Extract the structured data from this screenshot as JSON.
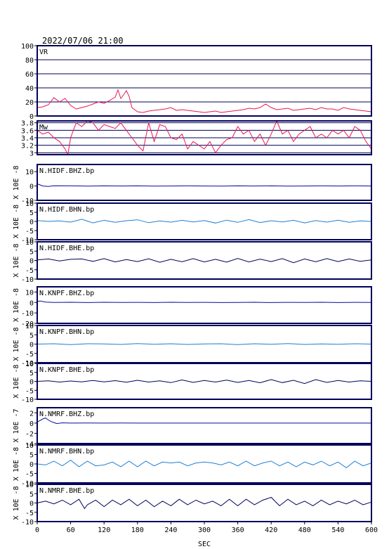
{
  "header": {
    "datetime": "2022/07/06 21:00"
  },
  "x_axis": {
    "label": "SEC",
    "range": [
      0,
      600
    ],
    "ticks": [
      0,
      60,
      120,
      180,
      240,
      300,
      360,
      420,
      480,
      540,
      600
    ]
  },
  "colors": {
    "vr_mw": "#e8174f",
    "bhz": "#0a0aa0",
    "bhn": "#1f7fd0",
    "bhe": "#00005a",
    "frame": "#00005a"
  },
  "chart_data": [
    {
      "type": "line",
      "name": "VR",
      "label": "VR",
      "ylim": [
        0,
        100
      ],
      "yticks": [
        0,
        20,
        40,
        60,
        80,
        100
      ],
      "grid": true,
      "x": [
        0,
        10,
        20,
        30,
        40,
        50,
        60,
        70,
        80,
        90,
        100,
        110,
        120,
        130,
        140,
        145,
        150,
        155,
        160,
        165,
        170,
        180,
        190,
        200,
        210,
        220,
        230,
        240,
        250,
        260,
        270,
        280,
        290,
        300,
        310,
        320,
        330,
        340,
        350,
        360,
        370,
        380,
        390,
        400,
        410,
        420,
        430,
        440,
        450,
        460,
        470,
        480,
        490,
        500,
        510,
        520,
        530,
        540,
        550,
        560,
        570,
        580,
        590,
        600
      ],
      "values": [
        12,
        13,
        16,
        26,
        20,
        25,
        15,
        10,
        12,
        14,
        17,
        20,
        18,
        22,
        27,
        37,
        25,
        30,
        36,
        28,
        12,
        6,
        5,
        7,
        8,
        9,
        10,
        12,
        8,
        9,
        8,
        7,
        6,
        5,
        6,
        7,
        5,
        6,
        7,
        8,
        9,
        11,
        10,
        12,
        17,
        12,
        9,
        10,
        11,
        8,
        9,
        10,
        11,
        9,
        12,
        10,
        10,
        8,
        12,
        10,
        9,
        8,
        7,
        6
      ]
    },
    {
      "type": "line",
      "name": "Mw",
      "label": "Mw",
      "ylim": [
        2.95,
        3.85
      ],
      "yticks": [
        3.0,
        3.2,
        3.4,
        3.6,
        3.8
      ],
      "grid": true,
      "x": [
        0,
        10,
        20,
        30,
        40,
        50,
        55,
        60,
        70,
        80,
        90,
        100,
        110,
        120,
        130,
        140,
        150,
        160,
        170,
        180,
        190,
        200,
        210,
        220,
        230,
        240,
        250,
        260,
        270,
        280,
        290,
        300,
        310,
        320,
        330,
        340,
        350,
        360,
        370,
        380,
        390,
        400,
        410,
        420,
        430,
        440,
        450,
        460,
        470,
        480,
        490,
        500,
        510,
        520,
        530,
        540,
        550,
        560,
        570,
        580,
        590,
        600
      ],
      "values": [
        3.6,
        3.5,
        3.55,
        3.4,
        3.3,
        3.1,
        2.95,
        3.4,
        3.8,
        3.7,
        3.85,
        3.8,
        3.6,
        3.75,
        3.7,
        3.65,
        3.8,
        3.6,
        3.4,
        3.2,
        3.05,
        3.8,
        3.3,
        3.75,
        3.7,
        3.4,
        3.35,
        3.5,
        3.1,
        3.3,
        3.2,
        3.1,
        3.3,
        3.0,
        3.2,
        3.35,
        3.4,
        3.7,
        3.5,
        3.6,
        3.3,
        3.5,
        3.2,
        3.5,
        3.85,
        3.5,
        3.6,
        3.3,
        3.5,
        3.6,
        3.7,
        3.4,
        3.5,
        3.4,
        3.6,
        3.5,
        3.6,
        3.4,
        3.7,
        3.6,
        3.3,
        3.1
      ]
    },
    {
      "type": "line",
      "name": "N.HIDF.BHZ.bp",
      "label": "N.HIDF.BHZ.bp",
      "ylabel": "X 10E -8",
      "ylim": [
        -10,
        15
      ],
      "yticks": [
        -10,
        0,
        10
      ],
      "grid": false,
      "color_key": "bhz",
      "x": [
        0,
        5,
        10,
        20,
        30,
        60,
        90,
        120,
        150,
        180,
        210,
        240,
        270,
        300,
        330,
        360,
        390,
        420,
        450,
        480,
        510,
        540,
        570,
        600
      ],
      "values": [
        1.5,
        0.8,
        0,
        -0.3,
        0.2,
        0.1,
        -0.1,
        0.1,
        0,
        0.1,
        -0.1,
        0,
        0.1,
        0,
        -0.1,
        0.1,
        0,
        0.1,
        -0.1,
        0,
        0.1,
        0,
        0.1,
        0
      ]
    },
    {
      "type": "line",
      "name": "N.HIDF.BHN.bp",
      "label": "N.HIDF.BHN.bp",
      "ylabel": "X 10E -8",
      "ylim": [
        -10,
        10
      ],
      "yticks": [
        -10,
        -5,
        0,
        5,
        10
      ],
      "grid": false,
      "color_key": "bhn",
      "x": [
        0,
        20,
        40,
        60,
        80,
        100,
        120,
        140,
        160,
        180,
        200,
        220,
        240,
        260,
        280,
        300,
        320,
        340,
        360,
        380,
        400,
        420,
        440,
        460,
        480,
        500,
        520,
        540,
        560,
        580,
        600
      ],
      "values": [
        0.5,
        0,
        0.3,
        -0.4,
        1.2,
        -0.8,
        0.6,
        -0.5,
        0.4,
        0.9,
        -0.7,
        0.3,
        -0.4,
        0.6,
        -0.3,
        0.5,
        -0.9,
        0.7,
        -0.5,
        1,
        -0.6,
        0.4,
        -0.3,
        0.6,
        -0.8,
        0.5,
        -0.4,
        0.7,
        -0.5,
        0.3,
        0
      ]
    },
    {
      "type": "line",
      "name": "N.HIDF.BHE.bp",
      "label": "N.HIDF.BHE.bp",
      "ylabel": "X 10E -8",
      "ylim": [
        -10,
        10
      ],
      "yticks": [
        -10,
        -5,
        0,
        5,
        10
      ],
      "grid": false,
      "color_key": "bhe",
      "x": [
        0,
        20,
        40,
        60,
        80,
        100,
        120,
        140,
        160,
        180,
        200,
        220,
        240,
        260,
        280,
        300,
        320,
        340,
        360,
        380,
        400,
        420,
        440,
        460,
        480,
        500,
        520,
        540,
        560,
        580,
        600
      ],
      "values": [
        0.3,
        0.8,
        -0.3,
        0.6,
        0.8,
        -0.5,
        1,
        -0.8,
        0.5,
        -0.6,
        0.9,
        -1,
        0.6,
        -0.7,
        1,
        -0.8,
        0.6,
        -0.9,
        1.1,
        -0.8,
        0.7,
        -0.6,
        1,
        -1.2,
        0.8,
        -0.7,
        1,
        -0.6,
        0.8,
        -0.5,
        0.3
      ]
    },
    {
      "type": "line",
      "name": "N.KNPF.BHZ.bp",
      "label": "N.KNPF.BHZ.bp",
      "ylabel": "X 10E -8",
      "ylim": [
        -20,
        15
      ],
      "yticks": [
        -20,
        -10,
        0,
        10
      ],
      "grid": false,
      "color_key": "bhz",
      "x": [
        0,
        5,
        15,
        30,
        60,
        90,
        120,
        150,
        180,
        210,
        240,
        270,
        300,
        330,
        360,
        390,
        420,
        450,
        480,
        510,
        540,
        570,
        600
      ],
      "values": [
        0.8,
        1.5,
        0.3,
        0,
        0.2,
        -0.1,
        0.2,
        0,
        0.1,
        -0.1,
        0.2,
        0,
        0.1,
        -0.1,
        0,
        0.2,
        -0.1,
        0.1,
        0,
        0.2,
        -0.1,
        0.1,
        0
      ]
    },
    {
      "type": "line",
      "name": "N.KNPF.BHN.bp",
      "label": "N.KNPF.BHN.bp",
      "ylabel": "X 10E -8",
      "ylim": [
        -10,
        10
      ],
      "yticks": [
        -10,
        -5,
        0,
        5,
        10
      ],
      "grid": false,
      "color_key": "bhn",
      "x": [
        0,
        30,
        60,
        90,
        120,
        150,
        180,
        210,
        240,
        270,
        300,
        330,
        360,
        390,
        420,
        450,
        480,
        510,
        540,
        570,
        600
      ],
      "values": [
        0,
        0.2,
        -0.3,
        0.2,
        0.1,
        -0.2,
        0.3,
        -0.1,
        0.2,
        -0.2,
        0.1,
        0.2,
        -0.3,
        0.2,
        -0.1,
        0.3,
        -0.2,
        0.1,
        -0.1,
        0.2,
        0
      ]
    },
    {
      "type": "line",
      "name": "N.KNPF.BHE.bp",
      "label": "N.KNPF.BHE.bp",
      "ylabel": "X 10E -8",
      "ylim": [
        -10,
        10
      ],
      "yticks": [
        -10,
        -5,
        0,
        5,
        10
      ],
      "grid": false,
      "color_key": "bhe",
      "x": [
        0,
        20,
        40,
        60,
        80,
        100,
        120,
        140,
        160,
        180,
        200,
        220,
        240,
        260,
        280,
        300,
        320,
        340,
        360,
        380,
        400,
        420,
        440,
        460,
        480,
        500,
        520,
        540,
        560,
        580,
        600
      ],
      "values": [
        0,
        0.3,
        -0.4,
        0.2,
        -0.3,
        0.5,
        -0.3,
        0.4,
        -0.5,
        0.6,
        -0.4,
        0.3,
        -0.7,
        0.8,
        -0.6,
        0.5,
        -0.4,
        0.7,
        -0.6,
        0.5,
        -0.8,
        1,
        -0.7,
        0.6,
        -1.2,
        1,
        -0.6,
        0.5,
        -0.4,
        0.3,
        0
      ]
    },
    {
      "type": "line",
      "name": "N.NMRF.BHZ.bp",
      "label": "N.NMRF.BHZ.bp",
      "ylabel": "X 10E -7",
      "ylim": [
        -4,
        3
      ],
      "yticks": [
        -4,
        -2,
        0,
        2
      ],
      "grid": false,
      "color_key": "bhz",
      "x": [
        0,
        5,
        10,
        15,
        20,
        25,
        30,
        35,
        45,
        60,
        90,
        120,
        150,
        180,
        240,
        300,
        360,
        420,
        480,
        540,
        600
      ],
      "values": [
        0.2,
        0.5,
        0.8,
        1.0,
        0.6,
        0.3,
        0.1,
        -0.1,
        0.05,
        0,
        0.02,
        0,
        0.02,
        0,
        0,
        0,
        0,
        0,
        0,
        0,
        0
      ]
    },
    {
      "type": "line",
      "name": "N.NMRF.BHN.bp",
      "label": "N.NMRF.BHN.bp",
      "ylabel": "X 10E -8",
      "ylim": [
        -10,
        10
      ],
      "yticks": [
        -10,
        -5,
        0,
        5,
        10
      ],
      "grid": false,
      "color_key": "bhn",
      "x": [
        0,
        15,
        30,
        45,
        60,
        75,
        90,
        105,
        120,
        135,
        150,
        165,
        180,
        195,
        210,
        225,
        240,
        255,
        270,
        285,
        300,
        315,
        330,
        345,
        360,
        375,
        390,
        405,
        420,
        435,
        450,
        465,
        480,
        495,
        510,
        525,
        540,
        555,
        570,
        585,
        600
      ],
      "values": [
        0,
        -0.5,
        1.5,
        -1,
        2,
        -1.5,
        1.5,
        -1,
        -0.5,
        1,
        -1.5,
        1.5,
        -1.5,
        1.5,
        -1,
        1,
        0.5,
        1,
        -1,
        0.5,
        1,
        0.5,
        -0.5,
        1,
        -1,
        1.5,
        -1,
        0.5,
        1.5,
        -1,
        1,
        -1.5,
        1,
        -0.5,
        1.5,
        -1,
        1,
        -2,
        1.5,
        -1,
        0.5
      ]
    },
    {
      "type": "line",
      "name": "N.NMRF.BHE.bp",
      "label": "N.NMRF.BHE.bp",
      "ylabel": "X 10E -8",
      "ylim": [
        -10,
        10
      ],
      "yticks": [
        -10,
        -5,
        0,
        5,
        10
      ],
      "grid": false,
      "color_key": "bhe",
      "x": [
        0,
        15,
        30,
        45,
        60,
        75,
        85,
        90,
        105,
        120,
        135,
        150,
        165,
        180,
        195,
        210,
        225,
        240,
        255,
        270,
        285,
        300,
        315,
        330,
        345,
        360,
        375,
        390,
        405,
        420,
        435,
        450,
        465,
        480,
        495,
        510,
        525,
        540,
        555,
        570,
        585,
        600
      ],
      "values": [
        0,
        1,
        -0.5,
        1.5,
        -1,
        2,
        -3,
        -1,
        1.5,
        -2,
        1.5,
        -1,
        2,
        -1.5,
        1.5,
        -2,
        1,
        -1.5,
        2,
        -1,
        1.5,
        -0.5,
        1,
        -1.5,
        2,
        -1.5,
        2,
        -1,
        1.5,
        3,
        -1.5,
        2,
        -1,
        1,
        -1.5,
        1.5,
        -1,
        1,
        -0.5,
        1.5,
        -1,
        0.5
      ]
    }
  ]
}
